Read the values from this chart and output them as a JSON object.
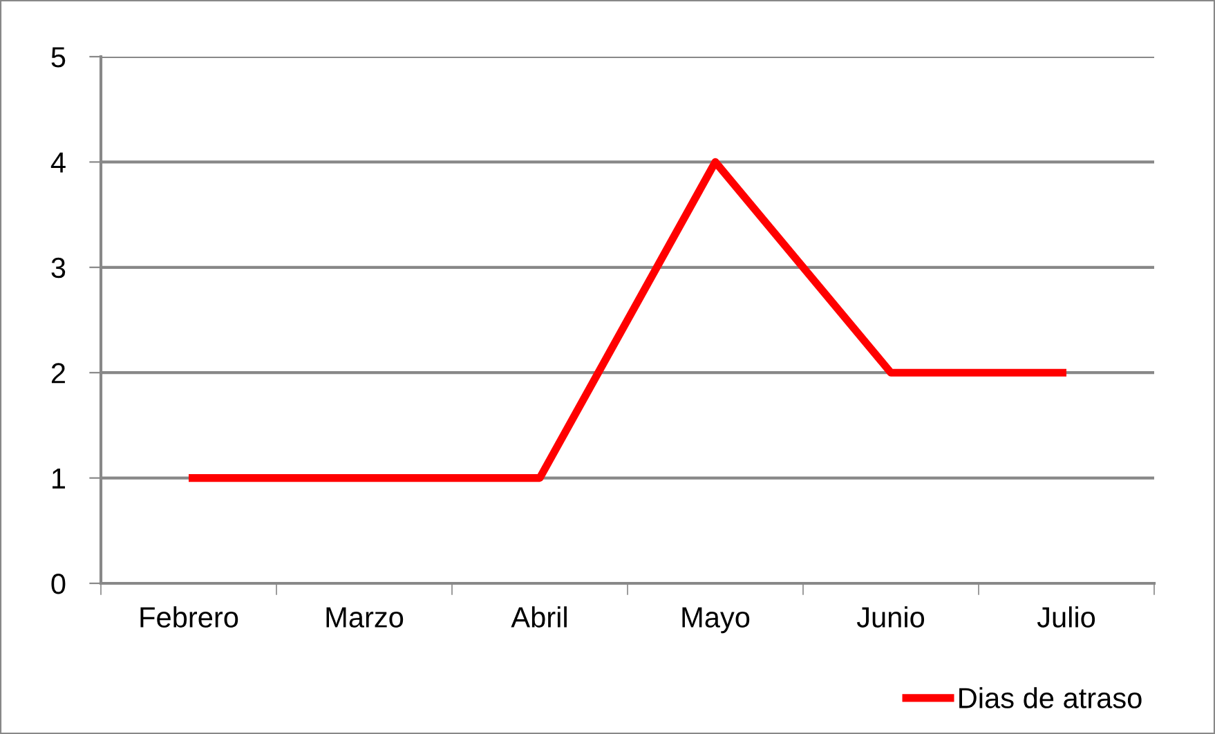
{
  "chart_data": {
    "type": "line",
    "categories": [
      "Febrero",
      "Marzo",
      "Abril",
      "Mayo",
      "Junio",
      "Julio"
    ],
    "series": [
      {
        "name": "Dias de atraso",
        "color": "#ff0000",
        "values": [
          1,
          1,
          1,
          4,
          2,
          2
        ]
      }
    ],
    "ylim": [
      0,
      5
    ],
    "yticks": [
      0,
      1,
      2,
      3,
      4,
      5
    ],
    "grid": "y",
    "legend": "bottom right",
    "marker": "none",
    "line_style": "solid"
  }
}
